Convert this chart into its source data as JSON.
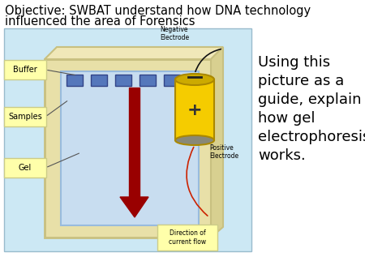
{
  "title_line1": "Objective: SWBAT understand how DNA technology",
  "title_line2": "influenced the area of Forensics",
  "title_fontsize": 10.5,
  "bg_color": "#ffffff",
  "diagram_bg": "#cce8f4",
  "gel_box_outer_color": "#e8e0a8",
  "gel_box_outer_edge": "#c8c080",
  "gel_box_inner_color": "#c8ddf0",
  "gel_box_inner_edge": "#99bbdd",
  "label_box_color": "#ffffaa",
  "label_box_edge": "#cccc88",
  "arrow_color": "#990000",
  "battery_body": "#f5cc00",
  "battery_edge": "#aa8800",
  "battery_top": "#ccaa00",
  "battery_bottom_cap": "#888877",
  "wire_color": "#111111",
  "wire_pos_color": "#cc2200",
  "side_text": "Using this\npicture as a\nguide, explain\nhow gel\nelectrophoresis\nworks.",
  "side_text_fontsize": 13,
  "label_buffer": "Buffer",
  "label_samples": "Samples",
  "label_gel": "Gel",
  "label_negative": "Negative\nElectrode",
  "label_positive": "Positive\nElectrode",
  "label_direction": "Direction of\ncurrent flow"
}
